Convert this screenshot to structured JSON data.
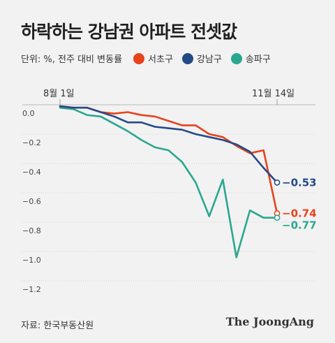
{
  "title": "하락하는 강남권 아파트 전셋값",
  "unit_label": "단위: %, 전주 대비 변동률",
  "source": "자료: 한국부동산원",
  "brand": "The JoongAng",
  "colors": {
    "seocho": "#e8431c",
    "gangnam": "#244a86",
    "songpa": "#2aa78f",
    "grid": "#d3d3d3",
    "text": "#333333"
  },
  "chart_data": {
    "type": "line",
    "x_start_label": "8월 1일",
    "x_end_label": "11월 14일",
    "ylim": [
      -1.2,
      0.0
    ],
    "yticks": [
      0.0,
      -0.2,
      -0.4,
      -0.6,
      -0.8,
      -1.0,
      -1.2
    ],
    "ytick_labels": [
      "0.0",
      "−0.2",
      "−0.4",
      "−0.6",
      "−0.8",
      "−1.0",
      "−1.2"
    ],
    "grid": true,
    "legend": "top",
    "series": [
      {
        "key": "seocho",
        "name": "서초구",
        "color": "#e8431c",
        "end_label": "−0.74",
        "values": [
          -0.01,
          -0.02,
          -0.02,
          -0.05,
          -0.06,
          -0.05,
          -0.07,
          -0.08,
          -0.11,
          -0.14,
          -0.14,
          -0.2,
          -0.22,
          -0.28,
          -0.33,
          -0.31,
          -0.74
        ]
      },
      {
        "key": "gangnam",
        "name": "강남구",
        "color": "#244a86",
        "end_label": "−0.53",
        "values": [
          -0.01,
          -0.02,
          -0.02,
          -0.05,
          -0.08,
          -0.12,
          -0.12,
          -0.15,
          -0.16,
          -0.17,
          -0.2,
          -0.22,
          -0.24,
          -0.27,
          -0.32,
          -0.43,
          -0.53
        ]
      },
      {
        "key": "songpa",
        "name": "송파구",
        "color": "#2aa78f",
        "end_label": "−0.77",
        "values": [
          -0.02,
          -0.03,
          -0.07,
          -0.08,
          -0.13,
          -0.18,
          -0.24,
          -0.29,
          -0.31,
          -0.39,
          -0.53,
          -0.76,
          -0.51,
          -1.04,
          -0.72,
          -0.77,
          -0.77
        ]
      }
    ]
  }
}
